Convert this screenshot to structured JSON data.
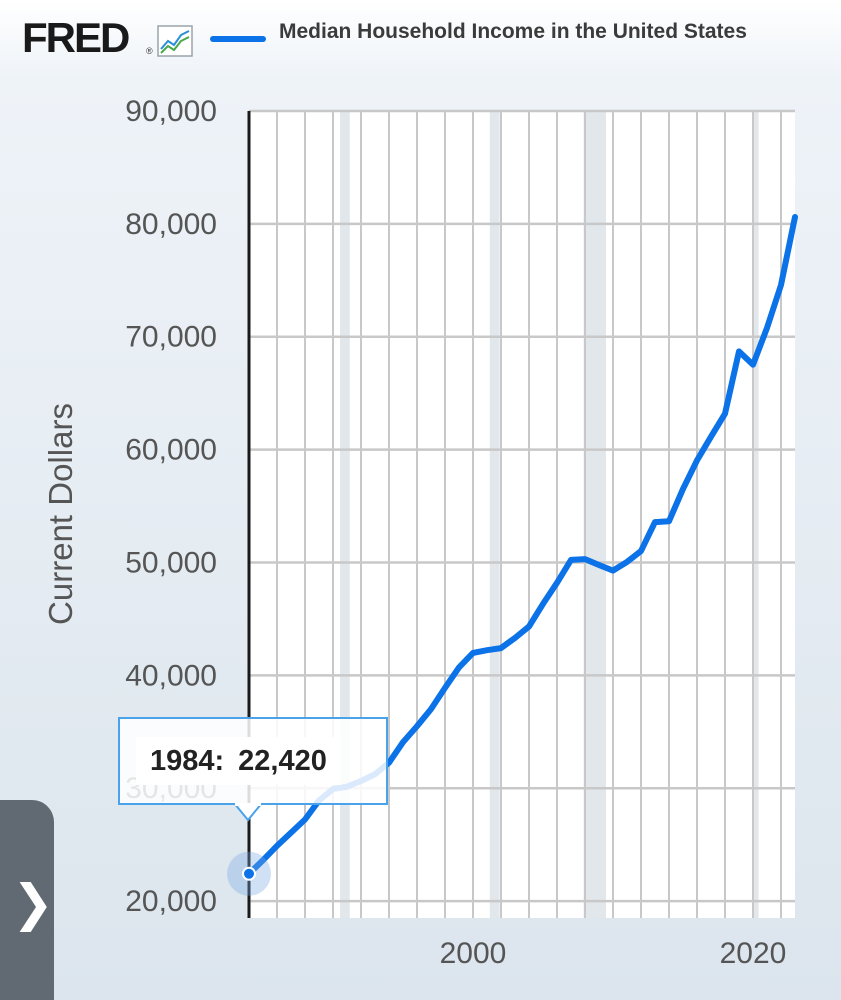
{
  "brand": {
    "name": "FRED",
    "registered_mark": "®",
    "icon": "line-chart-icon"
  },
  "legend": {
    "label": "Median Household Income in the United States",
    "color": "#0b72e7"
  },
  "tooltip": {
    "year": "1984:",
    "value": "22,420"
  },
  "side_tab": {
    "icon": "chevron-right-icon",
    "glyph": "❯"
  },
  "chart_data": {
    "type": "line",
    "ylabel": "Current Dollars",
    "xlabel": "",
    "ylim": [
      18500,
      90000
    ],
    "xlim": [
      1984,
      2023
    ],
    "yticks": [
      "20,000",
      "30,000",
      "40,000",
      "50,000",
      "60,000",
      "70,000",
      "80,000",
      "90,000"
    ],
    "ytick_values": [
      20000,
      30000,
      40000,
      50000,
      60000,
      70000,
      80000,
      90000
    ],
    "xticks": [
      "2000",
      "2020"
    ],
    "xtick_values": [
      2000,
      2020
    ],
    "grid": true,
    "recessions": [
      [
        1990.5,
        1991.2
      ],
      [
        2001.2,
        2001.9
      ],
      [
        2007.9,
        2009.5
      ],
      [
        2020.0,
        2020.4
      ]
    ],
    "series": [
      {
        "name": "Median Household Income in the United States",
        "color": "#0b72e7",
        "x": [
          1984,
          1985,
          1986,
          1987,
          1988,
          1989,
          1990,
          1991,
          1992,
          1993,
          1994,
          1995,
          1996,
          1997,
          1998,
          1999,
          2000,
          2001,
          2002,
          2003,
          2004,
          2005,
          2006,
          2007,
          2008,
          2009,
          2010,
          2011,
          2012,
          2013,
          2014,
          2015,
          2016,
          2017,
          2018,
          2019,
          2020,
          2021,
          2022,
          2023
        ],
        "values": [
          22420,
          23620,
          24900,
          26060,
          27230,
          28910,
          29940,
          30130,
          30640,
          31240,
          32260,
          34080,
          35490,
          37010,
          38890,
          40700,
          41990,
          42230,
          42410,
          43320,
          44330,
          46330,
          48200,
          50230,
          50300,
          49780,
          49280,
          50050,
          51020,
          53580,
          53660,
          56520,
          59040,
          61140,
          63180,
          68700,
          67520,
          70780,
          74580,
          80610
        ]
      }
    ],
    "highlight": {
      "x": 1984,
      "y": 22420
    }
  }
}
